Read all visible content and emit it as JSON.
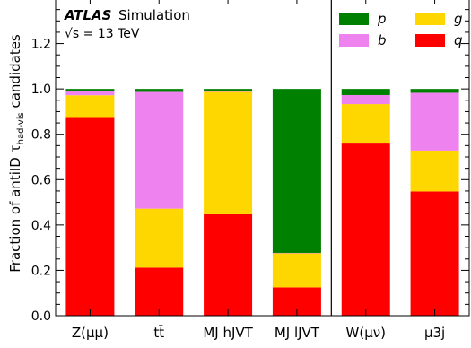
{
  "chart_data": {
    "type": "bar",
    "stacked": true,
    "experiment": "ATLAS",
    "label": "Simulation",
    "energy_label": "√s = 13 TeV",
    "ylabel": "Fraction of antiID τhad-vis candidates",
    "ylim": [
      0,
      1.4
    ],
    "yticks": [
      "0.0",
      "0.2",
      "0.4",
      "0.6",
      "0.8",
      "1.0",
      "1.2"
    ],
    "categories": [
      "Z(μμ)",
      "tt̄",
      "MJ hJVT",
      "MJ lJVT",
      "W(μν)",
      "μ3j"
    ],
    "separator_after_category": 3,
    "legend_position": "top-right",
    "series": [
      {
        "name": "q",
        "color": "#ff0000",
        "values": [
          0.872,
          0.212,
          0.447,
          0.125,
          0.763,
          0.548
        ]
      },
      {
        "name": "g",
        "color": "#ffd700",
        "values": [
          0.1,
          0.26,
          0.54,
          0.15,
          0.17,
          0.18
        ]
      },
      {
        "name": "b",
        "color": "#ee82ee",
        "values": [
          0.018,
          0.515,
          0.003,
          0.002,
          0.04,
          0.255
        ]
      },
      {
        "name": "p",
        "color": "#008000",
        "values": [
          0.01,
          0.013,
          0.01,
          0.723,
          0.027,
          0.017
        ]
      }
    ],
    "legend_order": [
      "p",
      "g",
      "b",
      "q"
    ]
  }
}
